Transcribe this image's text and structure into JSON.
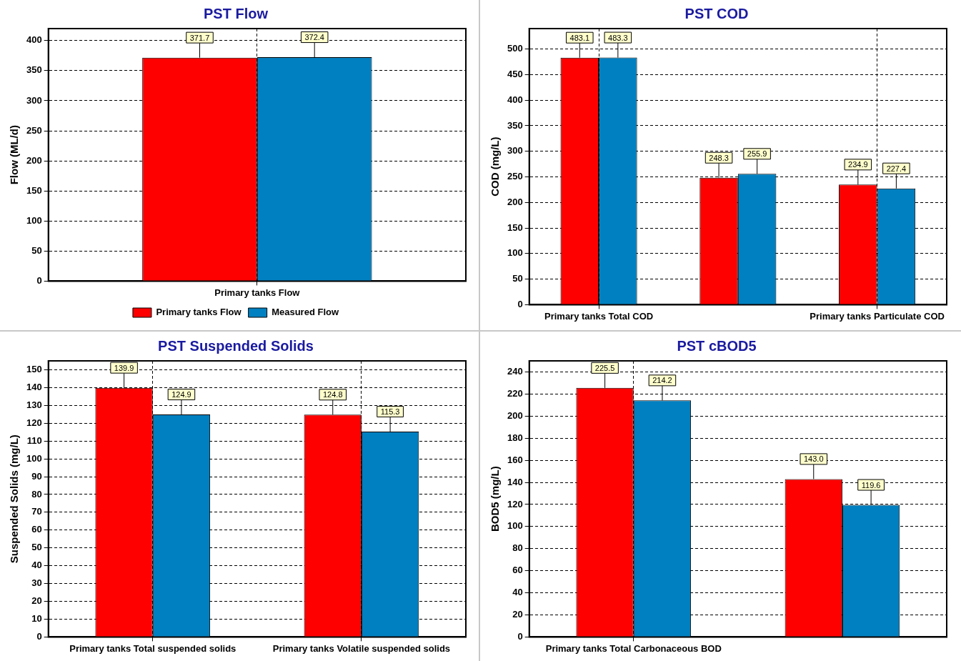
{
  "chart_data": [
    {
      "type": "bar",
      "title": "PST Flow",
      "ylabel": "Flow (ML/d)",
      "categories": [
        "Primary tanks Flow"
      ],
      "series": [
        {
          "name": "Primary tanks Flow",
          "color": "#ff0000",
          "values": [
            371.7
          ]
        },
        {
          "name": "Measured Flow",
          "color": "#0080c0",
          "values": [
            372.4
          ]
        }
      ],
      "ylim": [
        0,
        420
      ],
      "yticks": [
        0,
        50,
        100,
        150,
        200,
        250,
        300,
        350,
        400
      ],
      "grid": true,
      "legend": "bottom",
      "data_labels": true
    },
    {
      "type": "bar",
      "title": "PST COD",
      "ylabel": "COD (mg/L)",
      "categories": [
        "Primary tanks Total COD",
        null,
        "Primary tanks Particulate COD"
      ],
      "series": [
        {
          "color": "#ff0000",
          "values": [
            483.1,
            248.3,
            234.9
          ]
        },
        {
          "color": "#0080c0",
          "values": [
            483.3,
            255.9,
            227.4
          ]
        }
      ],
      "ylim": [
        0,
        540
      ],
      "yticks": [
        0,
        50,
        100,
        150,
        200,
        250,
        300,
        350,
        400,
        450,
        500
      ],
      "grid": true,
      "data_labels": true
    },
    {
      "type": "bar",
      "title": "PST Suspended Solids",
      "ylabel": "Suspended Solids (mg/L)",
      "categories": [
        "Primary tanks Total suspended solids",
        "Primary tanks Volatile suspended solids"
      ],
      "series": [
        {
          "color": "#ff0000",
          "values": [
            139.9,
            124.8
          ]
        },
        {
          "color": "#0080c0",
          "values": [
            124.9,
            115.3
          ]
        }
      ],
      "ylim": [
        0,
        155
      ],
      "yticks": [
        0,
        10,
        20,
        30,
        40,
        50,
        60,
        70,
        80,
        90,
        100,
        110,
        120,
        130,
        140,
        150
      ],
      "grid": true,
      "data_labels": true
    },
    {
      "type": "bar",
      "title": "PST cBOD5",
      "ylabel": "BOD5 (mg/L)",
      "categories": [
        "Primary tanks Total Carbonaceous BOD",
        null
      ],
      "series": [
        {
          "color": "#ff0000",
          "values": [
            225.5,
            143.0
          ],
          "value_labels": [
            "225.5",
            "143.0"
          ]
        },
        {
          "color": "#0080c0",
          "values": [
            214.2,
            119.6
          ]
        }
      ],
      "ylim": [
        0,
        250
      ],
      "yticks": [
        0,
        20,
        40,
        60,
        80,
        100,
        120,
        140,
        160,
        180,
        200,
        220,
        240
      ],
      "grid": true,
      "data_labels": true
    }
  ]
}
